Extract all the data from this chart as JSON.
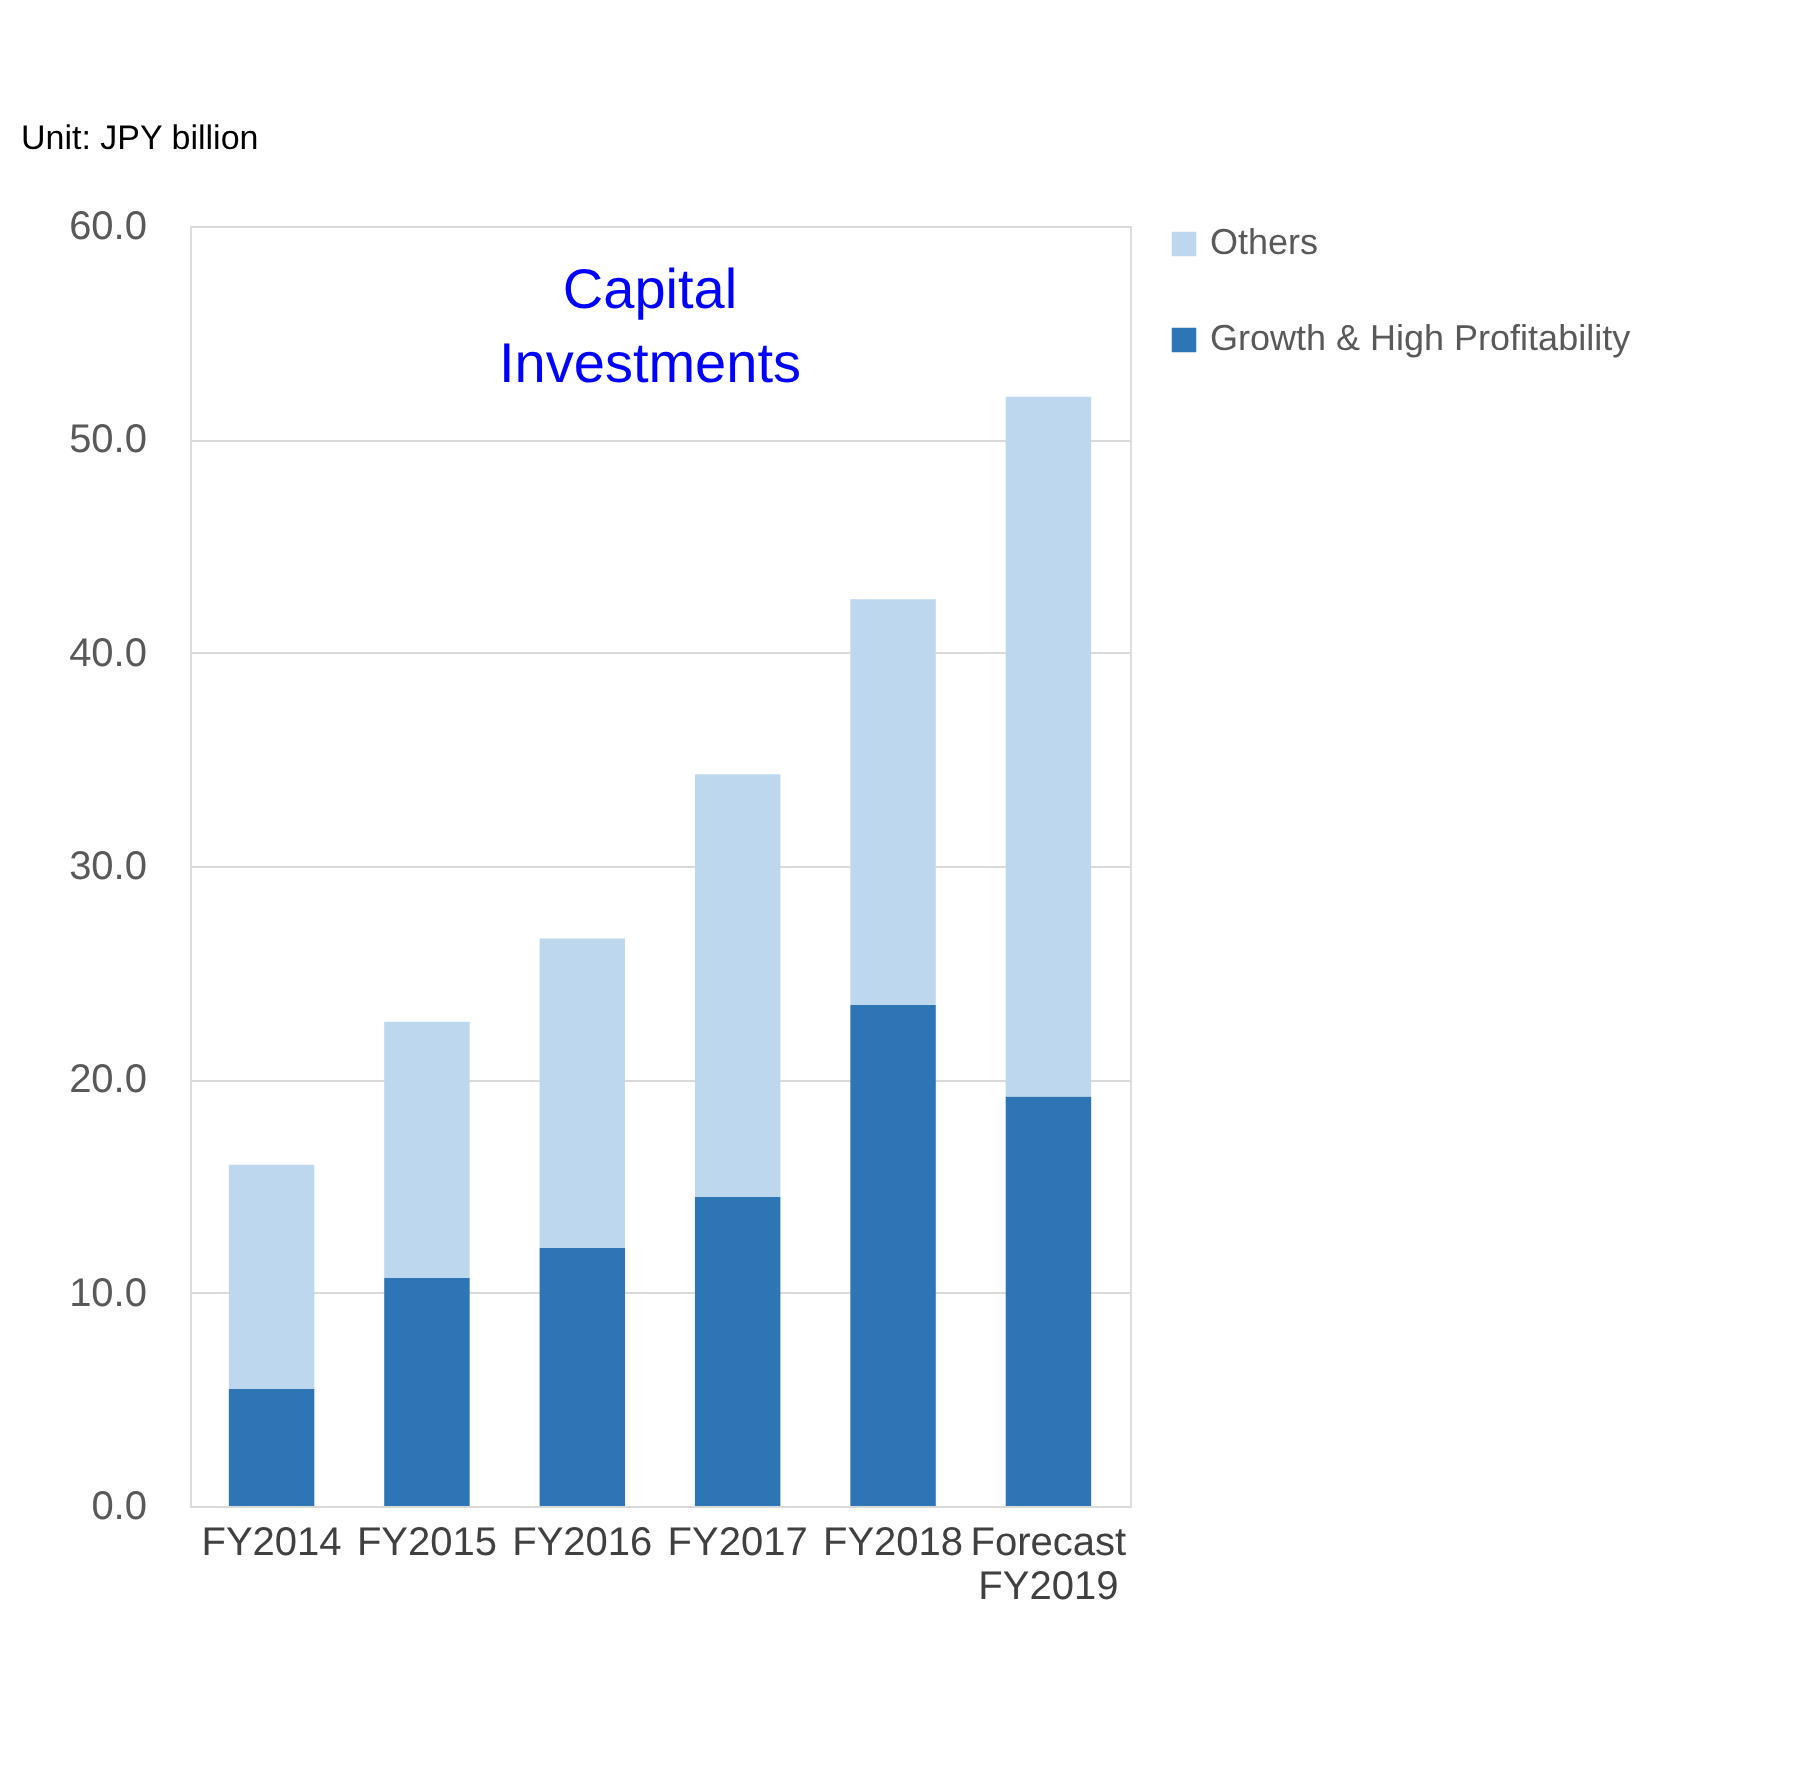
{
  "chart_data": {
    "type": "bar",
    "stacked": true,
    "title": "Capital Investments",
    "ylabel": "Unit: JPY billion",
    "categories": [
      "FY2014",
      "FY2015",
      "FY2016",
      "FY2017",
      "FY2018",
      "Forecast FY2019"
    ],
    "series": [
      {
        "name": "Growth & High Profitability",
        "color": "#2e75b6",
        "values": [
          5.5,
          10.7,
          12.1,
          14.5,
          23.5,
          19.2
        ]
      },
      {
        "name": "Others",
        "color": "#bdd7ee",
        "values": [
          10.5,
          12.0,
          14.5,
          19.8,
          19.0,
          32.8
        ]
      }
    ],
    "ylim": [
      0,
      60
    ],
    "yticks": [
      {
        "value": 0,
        "label": "0.0"
      },
      {
        "value": 10,
        "label": "10.0"
      },
      {
        "value": 20,
        "label": "20.0"
      },
      {
        "value": 30,
        "label": "30.0"
      },
      {
        "value": 40,
        "label": "40.0"
      },
      {
        "value": 50,
        "label": "50.0"
      },
      {
        "value": 60,
        "label": "60.0"
      }
    ],
    "grid": "y",
    "legend": "right"
  }
}
